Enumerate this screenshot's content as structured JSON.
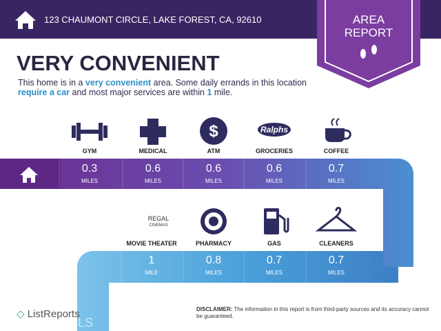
{
  "header": {
    "address": "123 CHAUMONT CIRCLE, LAKE FOREST, CA, 92610"
  },
  "badge": {
    "line1": "AREA",
    "line2": "REPORT"
  },
  "headline": "VERY CONVENIENT",
  "description": {
    "parts": [
      "This home is in a ",
      "very convenient",
      " area. Some daily errands in this location ",
      "require a car",
      " and most major services are within ",
      "1",
      " mile."
    ]
  },
  "rows": [
    [
      {
        "label": "GYM",
        "distance": 0.3,
        "unit": "MILES"
      },
      {
        "label": "MEDICAL",
        "distance": 0.6,
        "unit": "MILES"
      },
      {
        "label": "ATM",
        "distance": 0.6,
        "unit": "MILES"
      },
      {
        "label": "GROCERIES",
        "distance": 0.6,
        "unit": "MILES"
      },
      {
        "label": "COFFEE",
        "distance": 0.7,
        "unit": "MILES"
      }
    ],
    [
      {
        "label": "MOVIE THEATER",
        "distance": 1,
        "unit": "MILE"
      },
      {
        "label": "PHARMACY",
        "distance": 0.8,
        "unit": "MILES"
      },
      {
        "label": "GAS",
        "distance": 0.7,
        "unit": "MILES"
      },
      {
        "label": "CLEANERS",
        "distance": 0.7,
        "unit": "MILES"
      }
    ]
  ],
  "logos": {
    "atm": "$",
    "groceries": "Ralphs",
    "theater_top": "REGAL",
    "theater_bottom": "CINEMAS"
  },
  "footer": {
    "brand": "ListReports",
    "watermark": "LS",
    "disclaimer_label": "DISCLAIMER:",
    "disclaimer_text": "The information in this report is from third-party sources and its accuracy cannot be guaranteed."
  }
}
